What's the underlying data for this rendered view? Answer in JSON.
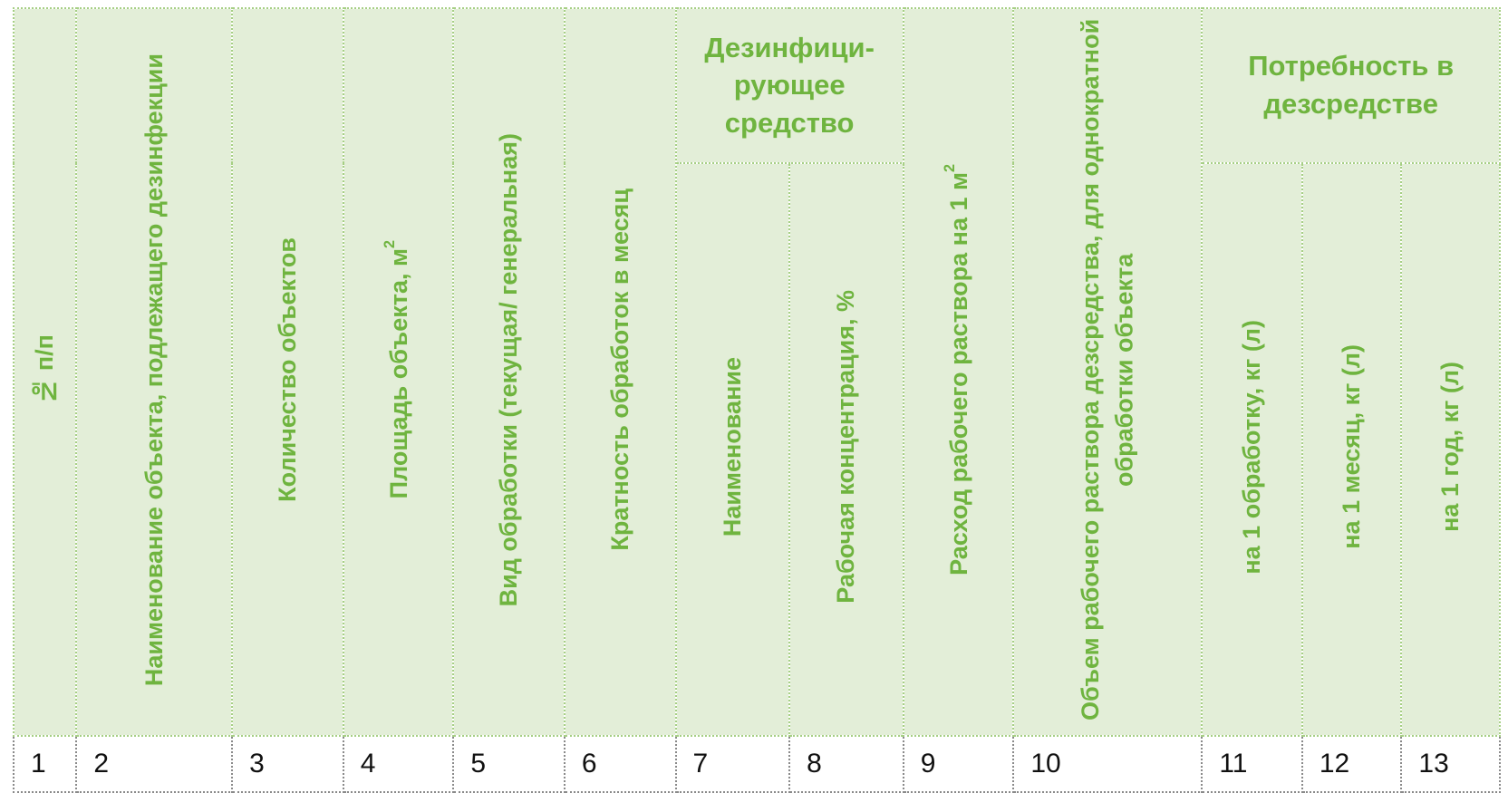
{
  "headers": {
    "col1": "№ п/п",
    "col2": "Наименование объекта, подлежащего дезинфекции",
    "col3": "Количество объектов",
    "col4": "Площадь объекта, м",
    "col4_sup": "2",
    "col5": "Вид обработки (текущая/ генеральная)",
    "col6": "Кратность обработок в месяц",
    "group_disinfectant": "Дезинфици- рующее средство",
    "col7": "Наименование",
    "col8": "Рабочая концентрация, %",
    "col9": "Расход рабочего раствора на 1 м",
    "col9_sup": "2",
    "col10": "Объем рабочего раствора дезсредства, для однократной обработки объекта",
    "group_need": "Потребность в дезсредстве",
    "col11": "на 1 обработку, кг (л)",
    "col12": "на 1 месяц, кг (л)",
    "col13": "на 1 год, кг (л)"
  },
  "numbers": [
    "1",
    "2",
    "3",
    "4",
    "5",
    "6",
    "7",
    "8",
    "9",
    "10",
    "11",
    "12",
    "13"
  ],
  "colors": {
    "header_bg": "#e3eed8",
    "header_text": "#6fb43f",
    "border": "#a6cf84"
  }
}
